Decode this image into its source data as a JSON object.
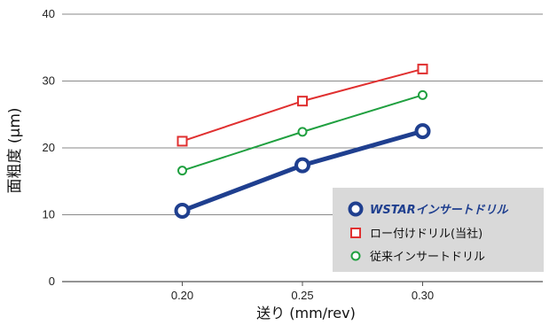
{
  "chart_data": {
    "type": "line",
    "x": [
      0.2,
      0.25,
      0.3
    ],
    "x_tick_labels": [
      "0.20",
      "0.25",
      "0.30"
    ],
    "y_ticks": [
      0,
      10,
      20,
      30,
      40
    ],
    "xlabel": "送り (mm/rev)",
    "ylabel": "面粗度 (μm)",
    "xlim": [
      0.15,
      0.35
    ],
    "ylim": [
      0,
      40
    ],
    "grid": "horizontal",
    "legend": "lower-right",
    "series": [
      {
        "name": "ロー付けドリル(当社)",
        "values": [
          21,
          27,
          31.8
        ],
        "color": "#e03030",
        "marker": "square"
      },
      {
        "name": "従来インサートドリル",
        "values": [
          16.6,
          22.4,
          27.9
        ],
        "color": "#20a040",
        "marker": "circle"
      },
      {
        "name": "WSTARインサートドリル",
        "values": [
          10.6,
          17.4,
          22.5
        ],
        "color": "#1f3f8f",
        "marker": "circle-bold"
      }
    ]
  }
}
